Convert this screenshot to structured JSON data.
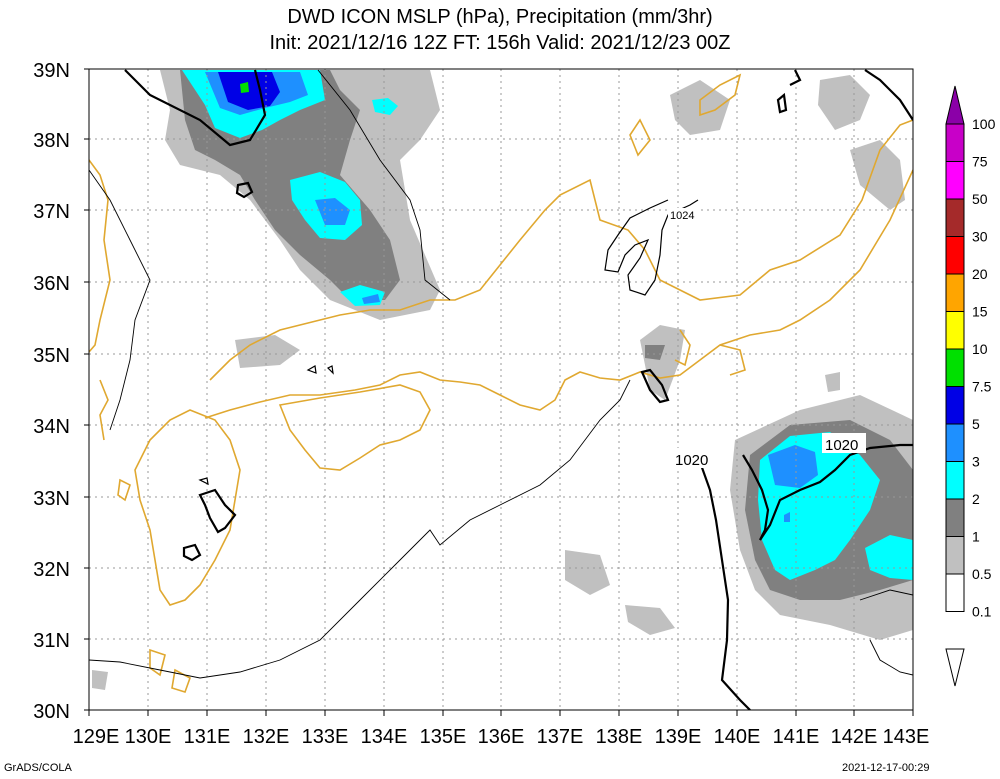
{
  "title": {
    "line1": "DWD ICON MSLP (hPa), Precipitation (mm/3hr)",
    "line2": "Init: 2021/12/16 12Z  FT: 156h  Valid: 2021/12/23 00Z"
  },
  "axes": {
    "lat_labels": [
      "39N",
      "38N",
      "37N",
      "36N",
      "35N",
      "34N",
      "33N",
      "32N",
      "31N",
      "30N"
    ],
    "lon_labels": [
      "129E",
      "130E",
      "131E",
      "132E",
      "133E",
      "134E",
      "135E",
      "136E",
      "137E",
      "138E",
      "139E",
      "140E",
      "141E",
      "142E",
      "143E"
    ]
  },
  "colorbar": {
    "levels": [
      "100",
      "75",
      "50",
      "30",
      "20",
      "15",
      "10",
      "7.5",
      "5",
      "3",
      "2",
      "1",
      "0.5",
      "0.1"
    ],
    "colors": [
      "#8b00a8",
      "#c800c8",
      "#ff00ff",
      "#a52a2a",
      "#ff0000",
      "#ffa500",
      "#ffff00",
      "#00e000",
      "#0000e6",
      "#1e90ff",
      "#00ffff",
      "#808080",
      "#c0c0c0",
      "#ffffff"
    ]
  },
  "isobar_labels": {
    "east_top": "1020",
    "east_left": "1020",
    "central": "1024"
  },
  "footer": {
    "left": "GrADS/COLA",
    "right": "2021-12-17-00:29"
  },
  "colors": {
    "coast": "#e0a830",
    "grid": "#999999",
    "light_precip": "#c0c0c0",
    "mid_precip": "#808080",
    "cyan": "#00ffff",
    "blue": "#1e90ff",
    "dark_blue": "#0000e6",
    "green": "#00e000"
  }
}
